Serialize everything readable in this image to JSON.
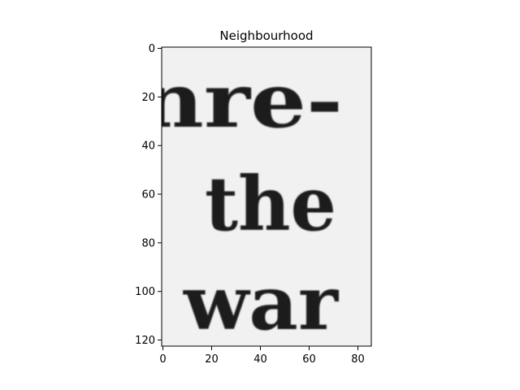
{
  "chart_data": {
    "type": "heatmap",
    "title": "Neighbourhood",
    "xlabel": "",
    "ylabel": "",
    "xlim": [
      -0.5,
      85.5
    ],
    "ylim": [
      122.5,
      -0.5
    ],
    "x_ticks": [
      0,
      20,
      40,
      60,
      80
    ],
    "y_ticks": [
      0,
      20,
      40,
      60,
      80,
      100,
      120
    ],
    "colormap": "gray",
    "image_text_lines": [
      "nre-",
      "the",
      "war"
    ],
    "background_color": "#f1f1f1",
    "ink_color": "#1a1a1a"
  }
}
